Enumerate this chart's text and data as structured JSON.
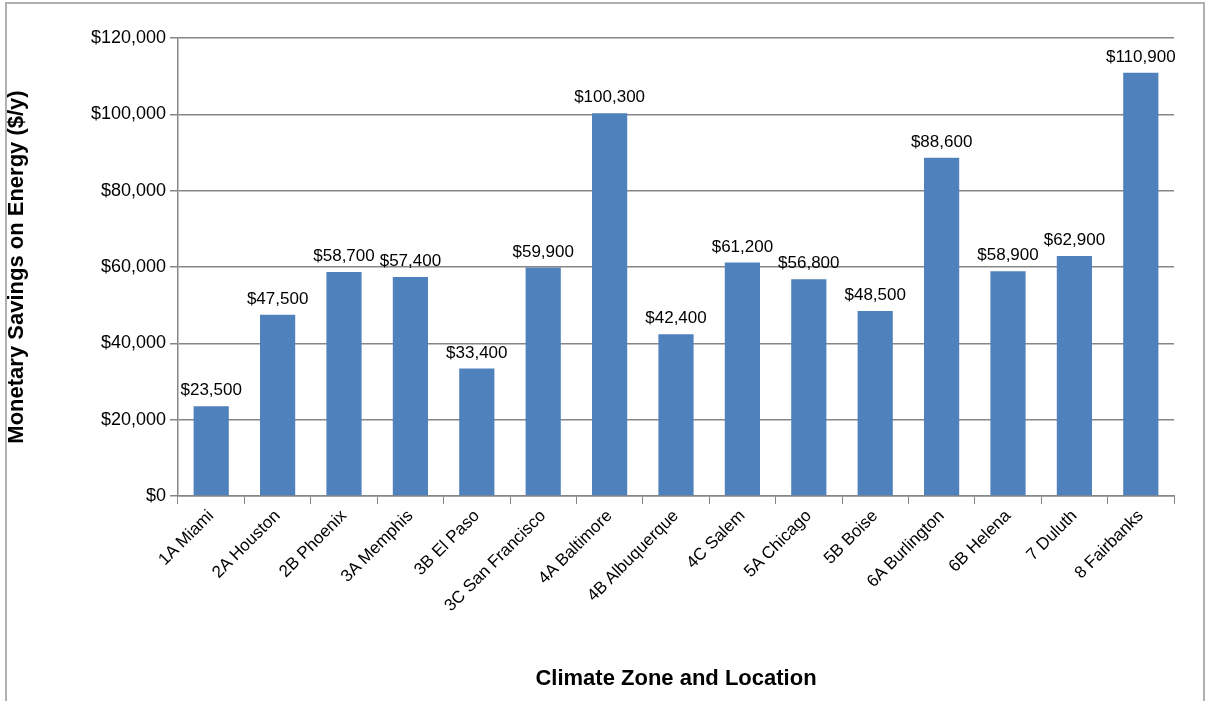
{
  "chart_data": {
    "type": "bar",
    "xlabel": "Climate Zone and Location",
    "ylabel": "Monetary Savings on Energy ($/y)",
    "categories": [
      "1A Miami",
      "2A Houston",
      "2B Phoenix",
      "3A Memphis",
      "3B El Paso",
      "3C San Francisco",
      "4A Baltimore",
      "4B Albuquerque",
      "4C Salem",
      "5A Chicago",
      "5B Boise",
      "6A Burlington",
      "6B Helena",
      "7 Duluth",
      "8 Fairbanks"
    ],
    "values": [
      23500,
      47500,
      58700,
      57400,
      33400,
      59900,
      100300,
      42400,
      61200,
      56800,
      48500,
      88600,
      58900,
      62900,
      110900
    ],
    "value_labels": [
      "$23,500",
      "$47,500",
      "$58,700",
      "$57,400",
      "$33,400",
      "$59,900",
      "$100,300",
      "$42,400",
      "$61,200",
      "$56,800",
      "$48,500",
      "$88,600",
      "$58,900",
      "$62,900",
      "$110,900"
    ],
    "color": "#4f81bd",
    "ylim": [
      0,
      120000
    ],
    "yticks": [
      {
        "value": 0,
        "label": "$0"
      },
      {
        "value": 20000,
        "label": "$20,000"
      },
      {
        "value": 40000,
        "label": "$40,000"
      },
      {
        "value": 60000,
        "label": "$60,000"
      },
      {
        "value": 80000,
        "label": "$80,000"
      },
      {
        "value": 100000,
        "label": "$100,000"
      },
      {
        "value": 120000,
        "label": "$120,000"
      }
    ],
    "grid": "y"
  }
}
